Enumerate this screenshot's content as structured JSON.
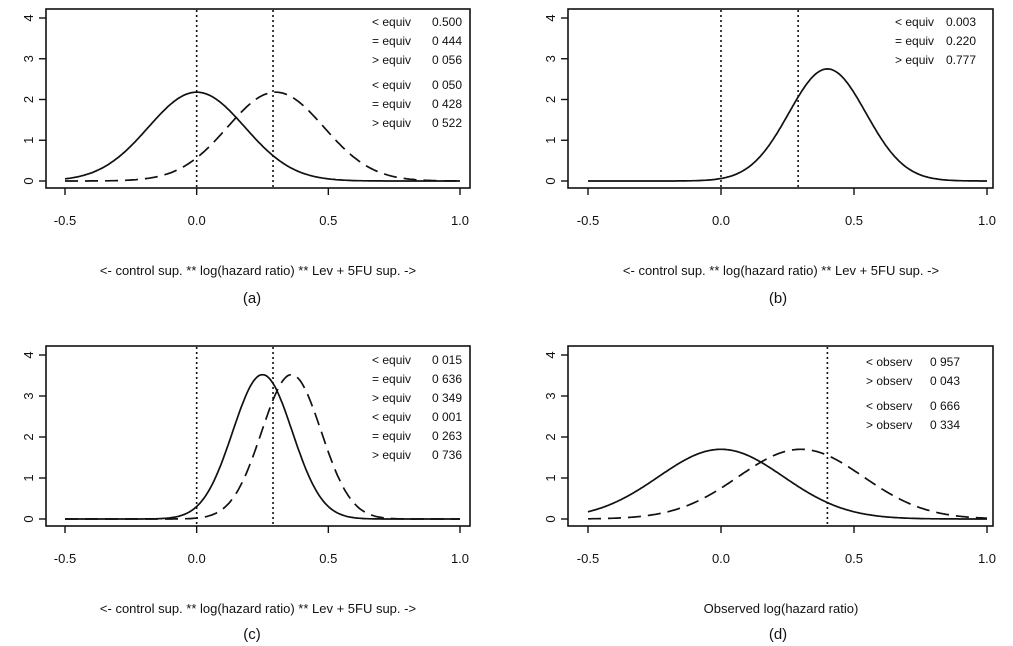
{
  "chart_data": [
    {
      "panel": "(a)",
      "type": "line",
      "xlabel": "<- control sup.  ** log(hazard ratio)  **  Lev + 5FU sup. ->",
      "xlim": [
        -0.5,
        1.0
      ],
      "ylim": [
        0,
        4
      ],
      "x_ticks": [
        "-0.5",
        "0.0",
        "0.5",
        "1.0"
      ],
      "y_ticks": [
        "0",
        "1",
        "2",
        "3",
        "4"
      ],
      "series": [
        {
          "style": "solid",
          "mean": 0.0,
          "sd": 0.183,
          "peak": 2.18
        },
        {
          "style": "dashed",
          "mean": 0.3,
          "sd": 0.183,
          "peak": 2.18
        }
      ],
      "vlines": [
        0.0,
        0.29
      ],
      "annotations": [
        [
          "< equiv",
          "0.500"
        ],
        [
          "= equiv",
          "0 444"
        ],
        [
          "> equiv",
          "0 056"
        ],
        [
          "< equiv",
          "0 050"
        ],
        [
          "= equiv",
          "0 428"
        ],
        [
          "> equiv",
          "0 522"
        ]
      ]
    },
    {
      "panel": "(b)",
      "type": "line",
      "xlabel": "<- control sup.  ** log(hazard ratio)  **  Lev + 5FU sup. ->",
      "xlim": [
        -0.5,
        1.0
      ],
      "ylim": [
        0,
        4
      ],
      "x_ticks": [
        "-0.5",
        "0.0",
        "0.5",
        "1.0"
      ],
      "y_ticks": [
        "0",
        "1",
        "2",
        "3",
        "4"
      ],
      "series": [
        {
          "style": "solid",
          "mean": 0.4,
          "sd": 0.145,
          "peak": 2.75
        }
      ],
      "vlines": [
        0.0,
        0.29
      ],
      "annotations": [
        [
          "< equiv",
          "0.003"
        ],
        [
          "= equiv",
          "0.220"
        ],
        [
          "> equiv",
          "0.777"
        ]
      ]
    },
    {
      "panel": "(c)",
      "type": "line",
      "xlabel": "<- control sup.  ** log(hazard ratio)  **  Lev + 5FU sup. ->",
      "xlim": [
        -0.5,
        1.0
      ],
      "ylim": [
        0,
        4
      ],
      "x_ticks": [
        "-0.5",
        "0.0",
        "0.5",
        "1.0"
      ],
      "y_ticks": [
        "0",
        "1",
        "2",
        "3",
        "4"
      ],
      "series": [
        {
          "style": "solid",
          "mean": 0.25,
          "sd": 0.113,
          "peak": 3.52
        },
        {
          "style": "dashed",
          "mean": 0.36,
          "sd": 0.113,
          "peak": 3.52
        }
      ],
      "vlines": [
        0.0,
        0.29
      ],
      "annotations": [
        [
          "< equiv",
          "0 015"
        ],
        [
          "= equiv",
          "0 636"
        ],
        [
          "> equiv",
          "0 349"
        ],
        [
          "< equiv",
          "0 001"
        ],
        [
          "= equiv",
          "0 263"
        ],
        [
          "> equiv",
          "0 736"
        ]
      ]
    },
    {
      "panel": "(d)",
      "type": "line",
      "xlabel": "Observed log(hazard ratio)",
      "xlim": [
        -0.5,
        1.0
      ],
      "ylim": [
        0,
        4
      ],
      "x_ticks": [
        "-0.5",
        "0.0",
        "0.5",
        "1.0"
      ],
      "y_ticks": [
        "0",
        "1",
        "2",
        "3",
        "4"
      ],
      "series": [
        {
          "style": "solid",
          "mean": 0.0,
          "sd": 0.235,
          "peak": 1.7
        },
        {
          "style": "dashed",
          "mean": 0.3,
          "sd": 0.235,
          "peak": 1.7
        }
      ],
      "vlines": [
        0.4
      ],
      "annotations": [
        [
          "< observ",
          "0 957"
        ],
        [
          "> observ",
          "0 043"
        ],
        [
          "< observ",
          "0 666"
        ],
        [
          "> observ",
          "0 334"
        ]
      ]
    }
  ]
}
